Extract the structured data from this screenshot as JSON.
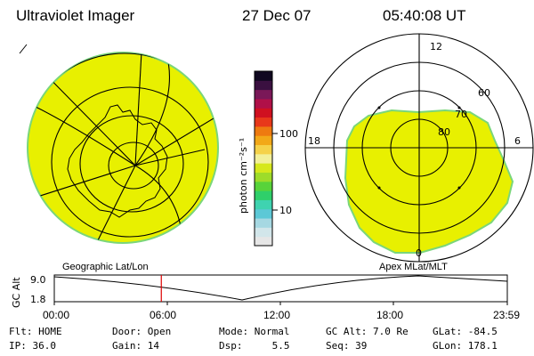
{
  "header": {
    "instrument": "Ultraviolet Imager",
    "date": "27 Dec 07",
    "time": "05:40:08 UT"
  },
  "geo_panel": {
    "label": "Geographic Lat/Lon",
    "fill_color": "#e8f000",
    "edge_color": "#7ad67a"
  },
  "polar_panel": {
    "label": "Apex MLat/MLT",
    "mlt_labels": {
      "top": "12",
      "left": "18",
      "right": "6",
      "bottom": "0"
    },
    "lat_labels": [
      "60",
      "70",
      "80"
    ],
    "fill_color": "#e8f000",
    "edge_color": "#7ad67a"
  },
  "colorbar": {
    "unit_label": "photon cm⁻²s⁻¹",
    "ticks": [
      "100",
      "10"
    ],
    "colors": [
      "#e6e6e6",
      "#d2e6ea",
      "#a6d8e2",
      "#5cc8d6",
      "#3fd3b0",
      "#2fcf6a",
      "#58d33a",
      "#9edc2a",
      "#d6e81c",
      "#f2f09a",
      "#f5d24a",
      "#f2a818",
      "#ee7a10",
      "#e8381a",
      "#d01020",
      "#b01048",
      "#7a1858",
      "#3a1040",
      "#100820"
    ]
  },
  "altitude_plot": {
    "ylabel": "GC Alt",
    "yticks": [
      "9.0",
      "1.8"
    ],
    "xticks": [
      "00:00",
      "06:00",
      "12:00",
      "18:00",
      "23:59"
    ],
    "marker_color": "#dd0000",
    "marker_hour": 5.67
  },
  "info": {
    "row1": [
      {
        "label": "Flt:",
        "value": "HOME"
      },
      {
        "label": "Door:",
        "value": "Open"
      },
      {
        "label": "Mode:",
        "value": "Normal"
      },
      {
        "label": "GC Alt:",
        "value": "7.0 Re"
      },
      {
        "label": "GLat:",
        "value": "-84.5"
      }
    ],
    "row2": [
      {
        "label": "IP:",
        "value": "36.0"
      },
      {
        "label": "Gain:",
        "value": "14"
      },
      {
        "label": "Dsp:",
        "value": "5.5"
      },
      {
        "label": "Seq:",
        "value": "39"
      },
      {
        "label": "GLon:",
        "value": "178.1"
      }
    ]
  }
}
